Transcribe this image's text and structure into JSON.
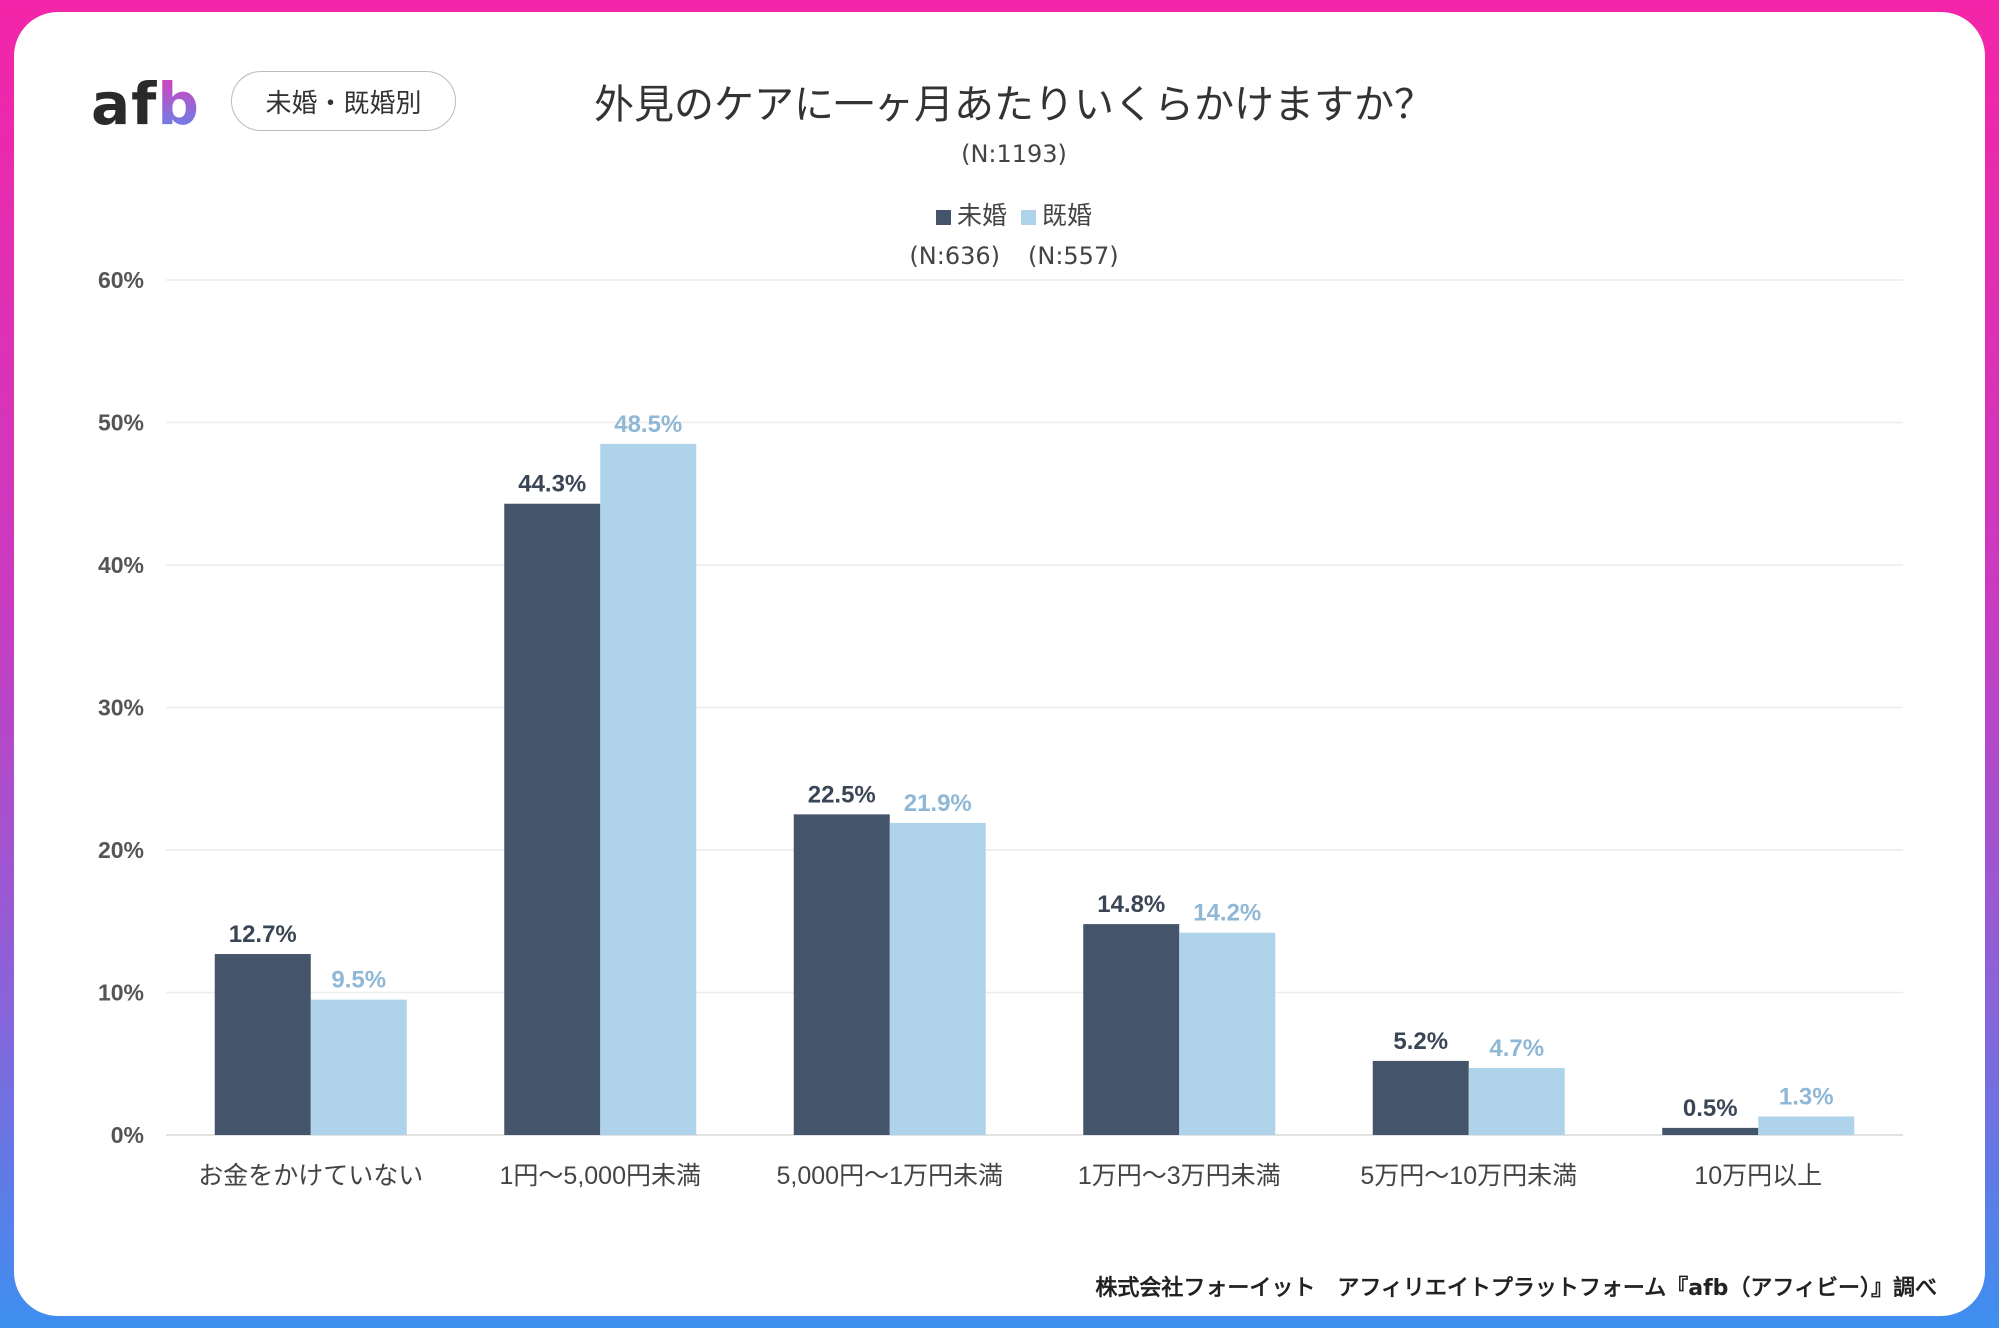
{
  "header": {
    "logo": "afb",
    "badge": "未婚・既婚別",
    "title": "外見のケアに一ヶ月あたりいくらかけますか？",
    "n_total": "(N:1193)"
  },
  "legend": [
    {
      "label": "未婚",
      "n": "(N:636)",
      "color": "#44546a"
    },
    {
      "label": "既婚",
      "n": "(N:557)",
      "color": "#aed3ea"
    }
  ],
  "footer": "株式会社フォーイット　アフィリエイトプラットフォーム『afb（アフィビー）』調べ",
  "chart_data": {
    "type": "bar",
    "title": "外見のケアに一ヶ月あたりいくらかけますか？",
    "categories": [
      "お金をかけていない",
      "1円〜5,000円未満",
      "5,000円〜1万円未満",
      "1万円〜3万円未満",
      "5万円〜10万円未満",
      "10万円以上"
    ],
    "series": [
      {
        "name": "未婚",
        "values": [
          12.7,
          44.3,
          22.5,
          14.8,
          5.2,
          0.5
        ],
        "labels": [
          "12.7%",
          "44.3%",
          "22.5%",
          "14.8%",
          "5.2%",
          "0.5%"
        ],
        "color": "#44546a",
        "label_color": "#3a4656"
      },
      {
        "name": "既婚",
        "values": [
          9.5,
          48.5,
          21.9,
          14.2,
          4.7,
          1.3
        ],
        "labels": [
          "9.5%",
          "48.5%",
          "21.9%",
          "14.2%",
          "4.7%",
          "1.3%"
        ],
        "color": "#aed3ea",
        "label_color": "#8fb8d6"
      }
    ],
    "ylim": [
      0,
      60
    ],
    "yticks": [
      "0%",
      "10%",
      "20%",
      "30%",
      "40%",
      "50%",
      "60%"
    ],
    "grid": true,
    "legend_position": "top-center"
  }
}
